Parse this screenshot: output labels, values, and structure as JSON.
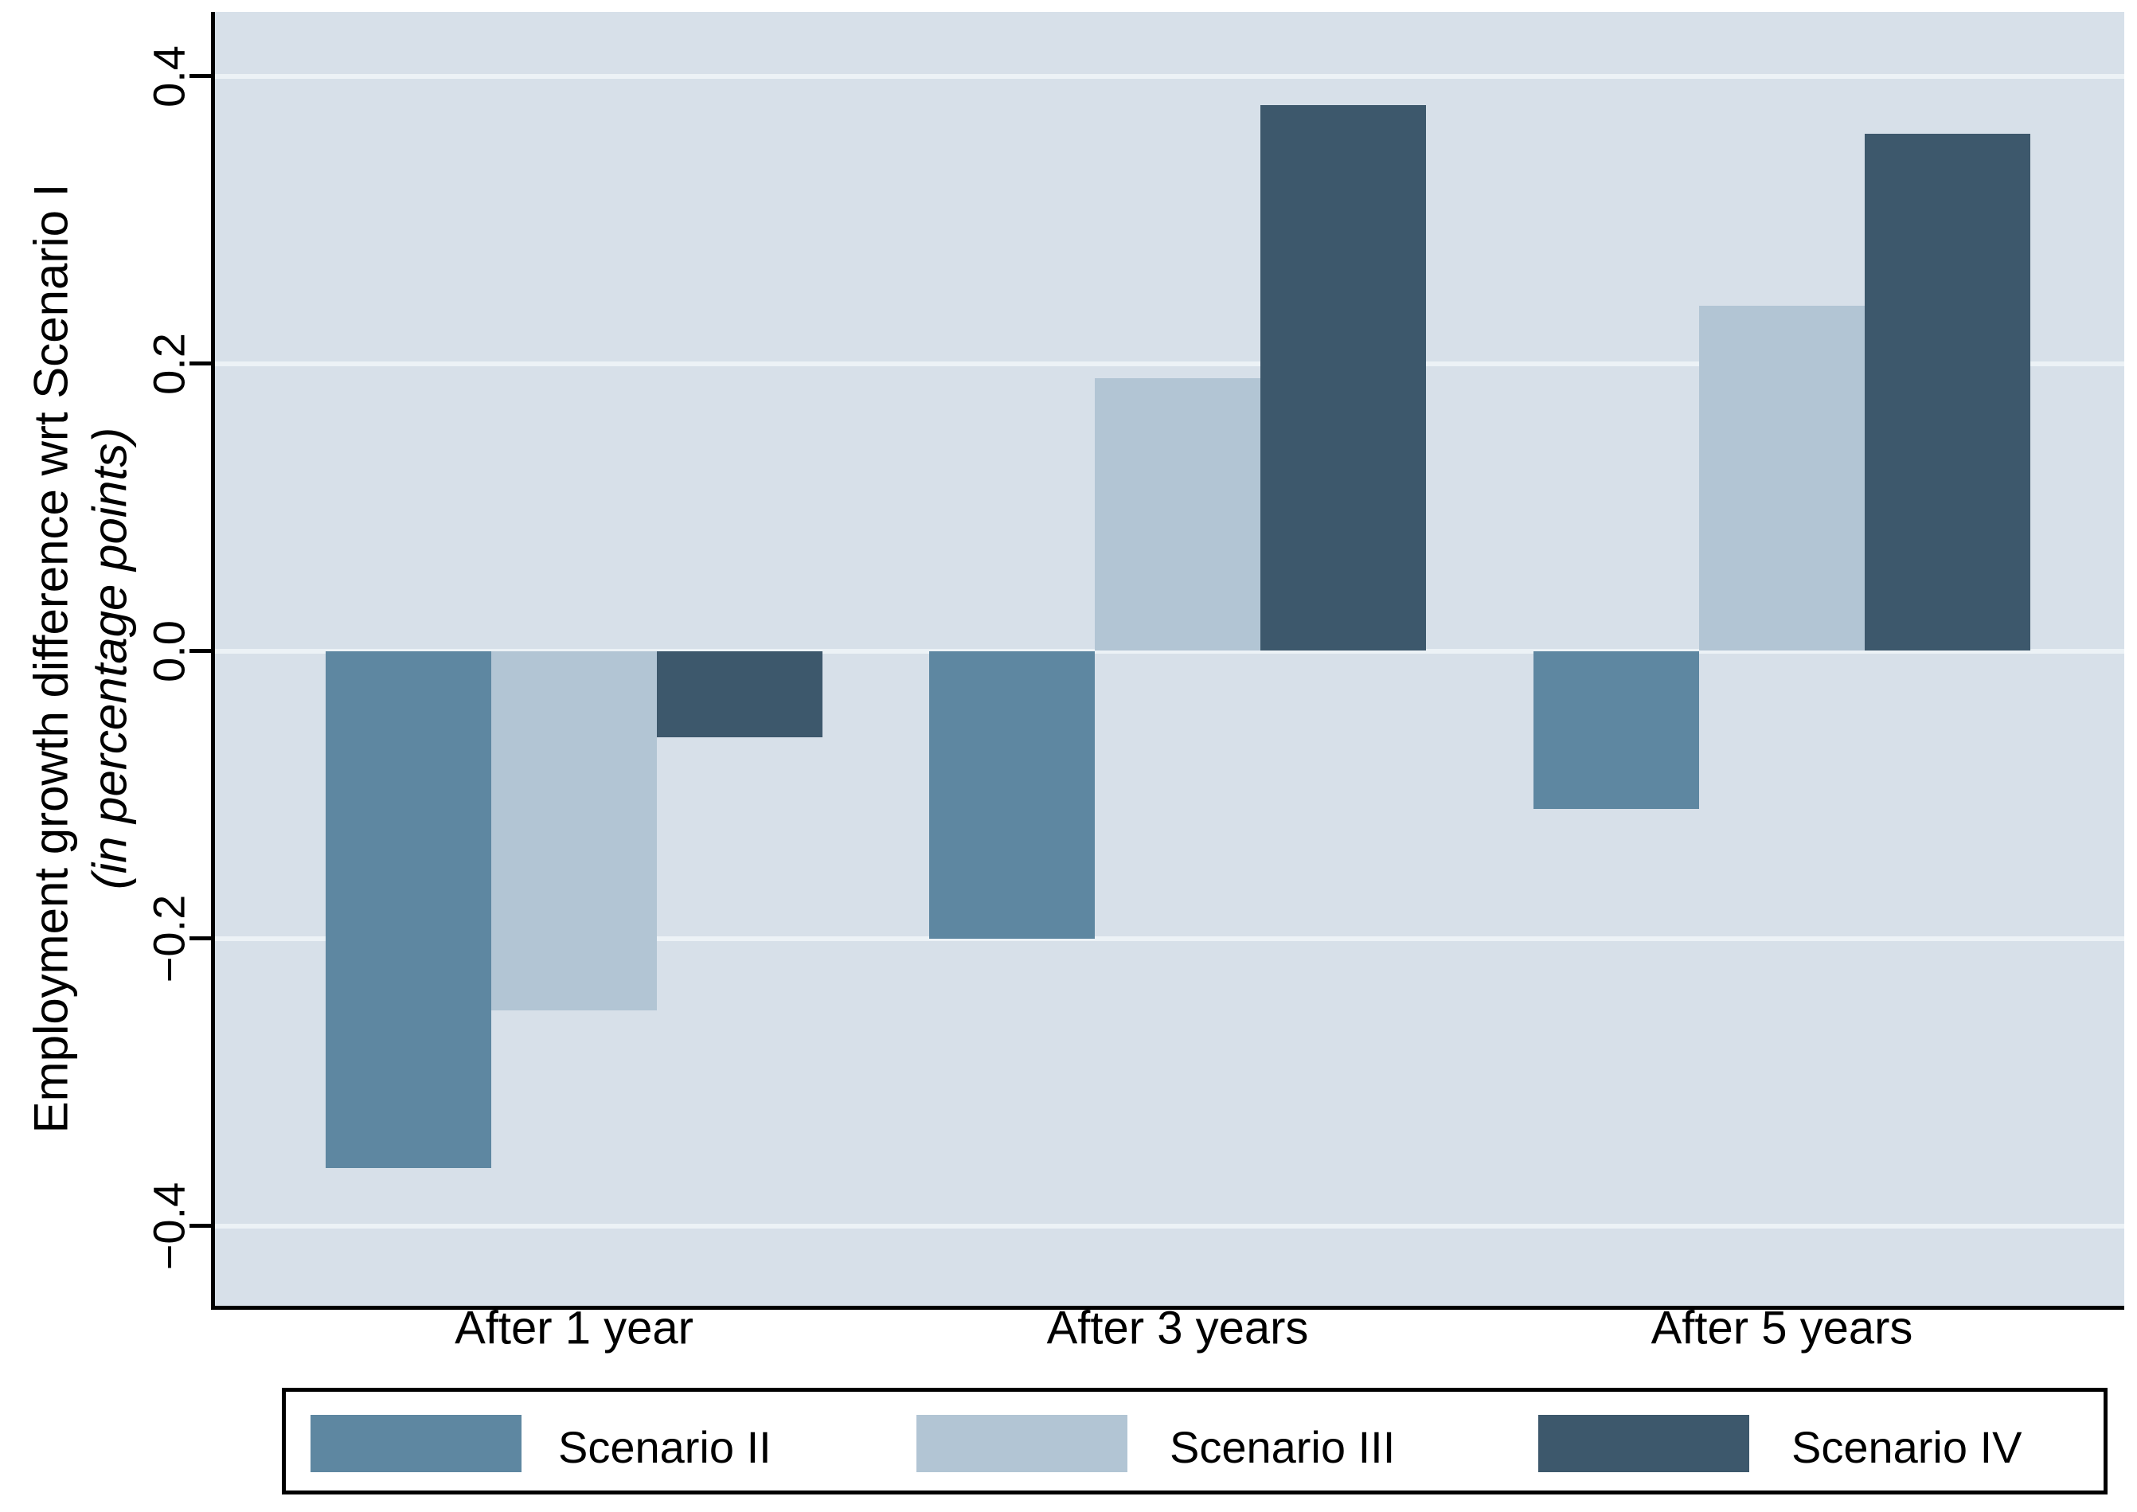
{
  "y_axis": {
    "title": "Employment growth difference wrt Scenario I",
    "subtitle": "(in percentage points)",
    "tick_labels": [
      "0.4",
      "0.2",
      "0.0",
      "−0.2",
      "−0.4"
    ]
  },
  "x_axis": {
    "categories": [
      "After 1 year",
      "After 3 years",
      "After 5 years"
    ]
  },
  "legend": {
    "entries": [
      {
        "label": "Scenario II",
        "color": "#5E87A1"
      },
      {
        "label": "Scenario III",
        "color": "#B2C5D4"
      },
      {
        "label": "Scenario IV",
        "color": "#3D586C"
      }
    ]
  },
  "chart_data": {
    "type": "bar",
    "categories": [
      "After 1 year",
      "After 3 years",
      "After 5 years"
    ],
    "series": [
      {
        "name": "Scenario II",
        "color": "#5E87A1",
        "values": [
          -0.36,
          -0.2,
          -0.11
        ]
      },
      {
        "name": "Scenario III",
        "color": "#B2C5D4",
        "values": [
          -0.25,
          0.19,
          0.24
        ]
      },
      {
        "name": "Scenario IV",
        "color": "#3D586C",
        "values": [
          -0.06,
          0.38,
          0.36
        ]
      }
    ],
    "title": "",
    "xlabel": "",
    "ylabel": "Employment growth difference wrt Scenario I (in percentage points)",
    "yticks": [
      0.4,
      0.2,
      0.0,
      -0.2,
      -0.4
    ],
    "ylim": [
      -0.456,
      0.444
    ],
    "grid": true,
    "gridline_color": "#ECF2F6",
    "plot_background": "#D7E0E9",
    "legend_position": "bottom"
  }
}
